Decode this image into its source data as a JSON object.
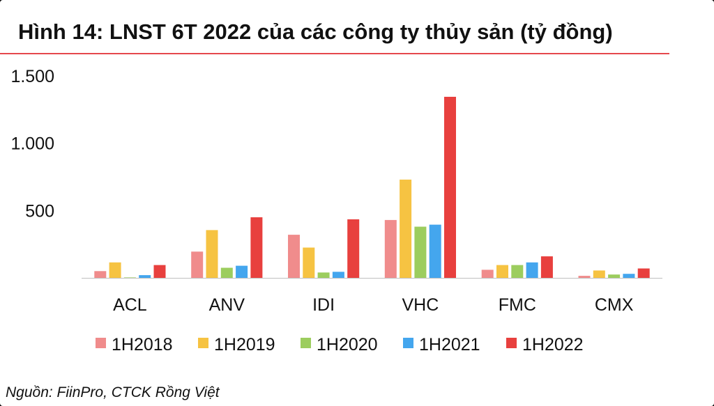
{
  "title": "Hình 14: LNST 6T 2022 của các công ty thủy sản (tỷ đồng)",
  "source": "Nguồn: FiinPro, CTCK Rồng Việt",
  "chart_data": {
    "type": "bar",
    "title": "Hình 14: LNST 6T 2022 của các công ty thủy sản (tỷ đồng)",
    "xlabel": "",
    "ylabel": "",
    "ylim": [
      0,
      1500
    ],
    "yticks": [
      {
        "value": 500,
        "label": "500"
      },
      {
        "value": 1000,
        "label": "1.000"
      },
      {
        "value": 1500,
        "label": "1.500"
      }
    ],
    "grid": false,
    "legend_position": "bottom",
    "categories": [
      "ACL",
      "ANV",
      "IDI",
      "VHC",
      "FMC",
      "CMX"
    ],
    "series": [
      {
        "name": "1H2018",
        "color": "#f08c8c",
        "values": [
          50,
          195,
          320,
          430,
          60,
          15
        ]
      },
      {
        "name": "1H2019",
        "color": "#f6c342",
        "values": [
          115,
          355,
          225,
          730,
          95,
          55
        ]
      },
      {
        "name": "1H2020",
        "color": "#9ccd5e",
        "values": [
          3,
          75,
          40,
          380,
          95,
          25
        ]
      },
      {
        "name": "1H2021",
        "color": "#44a6ee",
        "values": [
          20,
          90,
          45,
          395,
          115,
          30
        ]
      },
      {
        "name": "1H2022",
        "color": "#e8403e",
        "values": [
          95,
          450,
          435,
          1345,
          160,
          70
        ]
      }
    ]
  }
}
